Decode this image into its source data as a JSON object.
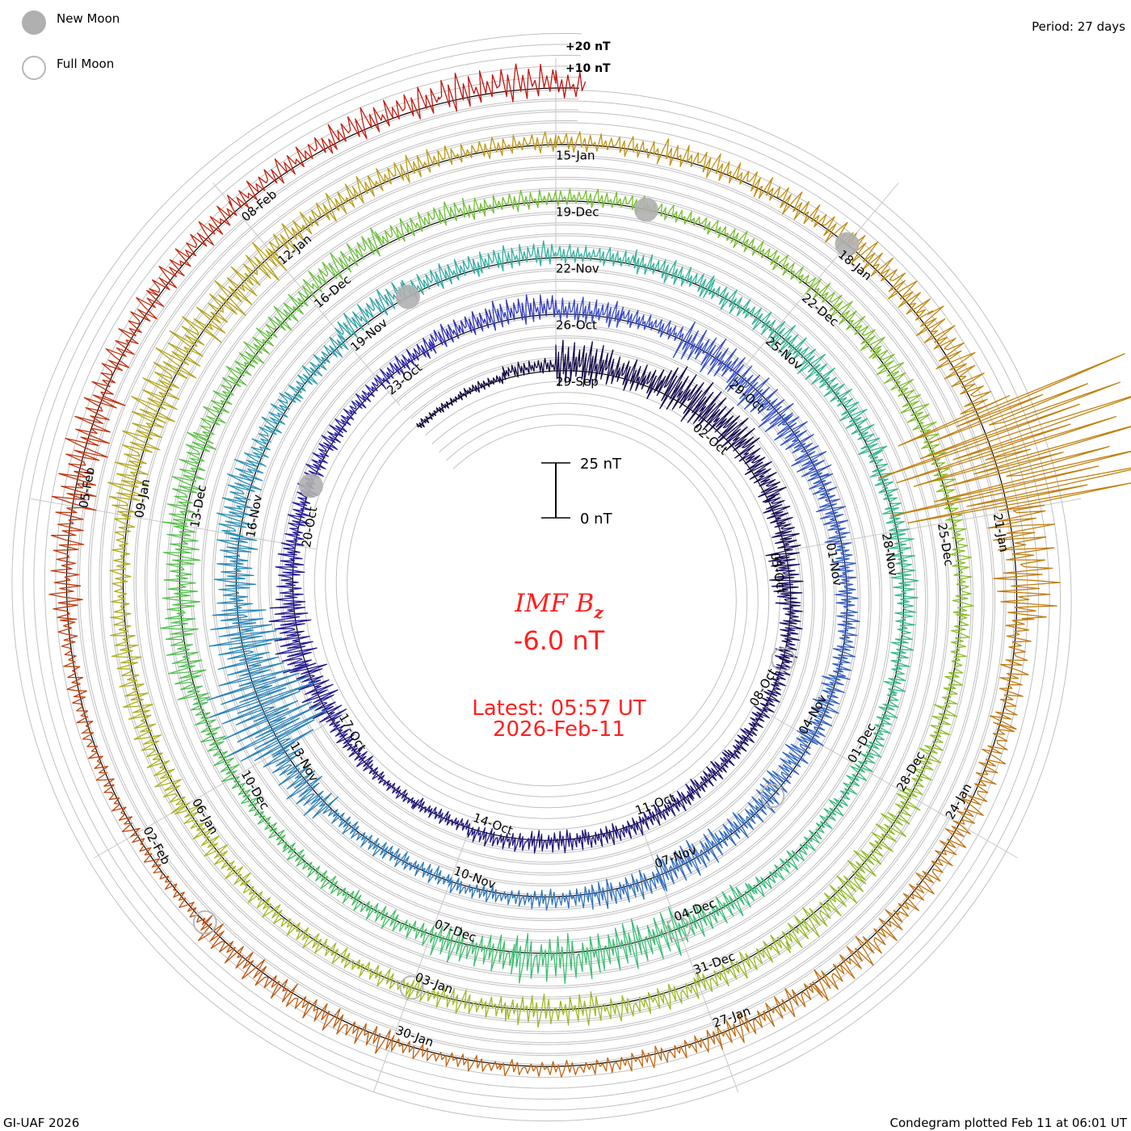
{
  "legend": {
    "new_moon": "New Moon",
    "full_moon": "Full Moon",
    "new_color": "#b0b0b0",
    "full_color": "#b8b8b8"
  },
  "period": "Period: 27 days",
  "footer_left": "GI-UAF 2026",
  "footer_right": "Condegram plotted Feb 11 at 06:01 UT",
  "center": {
    "title": "IMF B",
    "subscript": "z",
    "value": "-6.0 nT",
    "latest": "Latest: 05:57 UT",
    "date": "2026-Feb-11",
    "color": "#ff2020"
  },
  "scale": {
    "top": "25 nT",
    "bottom": "0 nT",
    "nT": 25
  },
  "grid_labels": {
    "plus20": "+20 nT",
    "plus10": "+10 nT"
  },
  "chart_data": {
    "type": "line",
    "title": "IMF Bz",
    "period_days": 27,
    "units": "nT",
    "origin_date": "29-Sep",
    "start_date": "2025-09-26",
    "end_day_offset": 135.25,
    "series_daily_min_max": [
      [
        -2,
        2
      ],
      [
        -2,
        3
      ],
      [
        -1,
        6
      ],
      [
        -8,
        14
      ],
      [
        -6,
        10
      ],
      [
        -8,
        16
      ],
      [
        -6,
        14
      ],
      [
        -4,
        10
      ],
      [
        -5,
        8
      ],
      [
        -10,
        6
      ],
      [
        -5,
        6
      ],
      [
        -4,
        5
      ],
      [
        -5,
        4
      ],
      [
        -6,
        4
      ],
      [
        -5,
        5
      ],
      [
        -4,
        6
      ],
      [
        -5,
        6
      ],
      [
        -3,
        6
      ],
      [
        -4,
        3
      ],
      [
        -3,
        3
      ],
      [
        -5,
        4
      ],
      [
        -10,
        8
      ],
      [
        -8,
        12
      ],
      [
        -6,
        8
      ],
      [
        -5,
        6
      ],
      [
        -4,
        6
      ],
      [
        -3,
        5
      ],
      [
        -4,
        6
      ],
      [
        -3,
        8
      ],
      [
        -4,
        10
      ],
      [
        -5,
        8
      ],
      [
        -3,
        6
      ],
      [
        -10,
        10
      ],
      [
        -12,
        8
      ],
      [
        -10,
        8
      ],
      [
        -8,
        6
      ],
      [
        -6,
        5
      ],
      [
        -5,
        6
      ],
      [
        -8,
        6
      ],
      [
        -10,
        4
      ],
      [
        -8,
        6
      ],
      [
        -10,
        8
      ],
      [
        -6,
        8
      ],
      [
        -4,
        6
      ],
      [
        -3,
        5
      ],
      [
        -5,
        4
      ],
      [
        -4,
        5
      ],
      [
        -8,
        12
      ],
      [
        -30,
        25
      ],
      [
        -20,
        15
      ],
      [
        -10,
        10
      ],
      [
        -6,
        12
      ],
      [
        -4,
        8
      ],
      [
        -5,
        6
      ],
      [
        -3,
        10
      ],
      [
        -4,
        8
      ],
      [
        -4,
        8
      ],
      [
        -3,
        6
      ],
      [
        -5,
        7
      ],
      [
        -6,
        6
      ],
      [
        -8,
        8
      ],
      [
        -6,
        8
      ],
      [
        -5,
        6
      ],
      [
        -6,
        7
      ],
      [
        -5,
        6
      ],
      [
        -4,
        6
      ],
      [
        -5,
        5
      ],
      [
        -4,
        6
      ],
      [
        -8,
        8
      ],
      [
        -12,
        12
      ],
      [
        -10,
        14
      ],
      [
        -8,
        10
      ],
      [
        -5,
        6
      ],
      [
        -4,
        5
      ],
      [
        -4,
        4
      ],
      [
        -6,
        6
      ],
      [
        -8,
        10
      ],
      [
        -10,
        8
      ],
      [
        -6,
        10
      ],
      [
        -5,
        8
      ],
      [
        -6,
        8
      ],
      [
        -4,
        10
      ],
      [
        -3,
        8
      ],
      [
        -4,
        6
      ],
      [
        -3,
        6
      ],
      [
        -3,
        5
      ],
      [
        -4,
        6
      ],
      [
        -5,
        8
      ],
      [
        -6,
        8
      ],
      [
        -5,
        6
      ],
      [
        -4,
        6
      ],
      [
        -4,
        5
      ],
      [
        -6,
        6
      ],
      [
        -8,
        8
      ],
      [
        -6,
        10
      ],
      [
        -5,
        8
      ],
      [
        -4,
        8
      ],
      [
        -8,
        8
      ],
      [
        -6,
        6
      ],
      [
        -5,
        5
      ],
      [
        -4,
        6
      ],
      [
        -6,
        6
      ],
      [
        -5,
        8
      ],
      [
        -6,
        8
      ],
      [
        -4,
        6
      ],
      [
        -8,
        12
      ],
      [
        -10,
        14
      ],
      [
        -12,
        10
      ],
      [
        -6,
        8
      ],
      [
        -5,
        8
      ],
      [
        -4,
        6
      ],
      [
        -4,
        6
      ],
      [
        -5,
        8
      ],
      [
        -6,
        8
      ],
      [
        -6,
        10
      ],
      [
        -8,
        12
      ],
      [
        -60,
        80
      ],
      [
        -12,
        20
      ],
      [
        -6,
        8
      ],
      [
        -5,
        8
      ],
      [
        -5,
        8
      ],
      [
        -6,
        10
      ],
      [
        -6,
        8
      ],
      [
        -4,
        6
      ],
      [
        -3,
        5
      ],
      [
        -3,
        5
      ],
      [
        -5,
        8
      ],
      [
        -6,
        8
      ],
      [
        -3,
        4
      ],
      [
        -3,
        5
      ],
      [
        -4,
        5
      ],
      [
        -8,
        8
      ],
      [
        -12,
        10
      ],
      [
        -6,
        8
      ],
      [
        -5,
        8
      ],
      [
        -4,
        8
      ],
      [
        -5,
        10
      ],
      [
        -6,
        12
      ],
      [
        -6,
        8
      ]
    ],
    "color_stops": [
      [
        0,
        "#12083a"
      ],
      [
        27,
        "#2a20a8"
      ],
      [
        30,
        "#3848c8"
      ],
      [
        50,
        "#2a8ab8"
      ],
      [
        56,
        "#30b0a0"
      ],
      [
        70,
        "#38c070"
      ],
      [
        83,
        "#70c030"
      ],
      [
        100,
        "#a8b820"
      ],
      [
        112,
        "#c09010"
      ],
      [
        125,
        "#c06010"
      ],
      [
        138,
        "#c01010"
      ]
    ],
    "date_labels": [
      "29-Sep",
      "02-Oct",
      "05-Oct",
      "08-Oct",
      "11-Oct",
      "14-Oct",
      "17-Oct",
      "20-Oct",
      "23-Oct",
      "26-Oct",
      "29-Oct",
      "01-Nov",
      "04-Nov",
      "07-Nov",
      "10-Nov",
      "13-Nov",
      "16-Nov",
      "19-Nov",
      "22-Nov",
      "25-Nov",
      "28-Nov",
      "01-Dec",
      "04-Dec",
      "07-Dec",
      "10-Dec",
      "13-Dec",
      "16-Dec",
      "19-Dec",
      "22-Dec",
      "25-Dec",
      "28-Dec",
      "31-Dec",
      "03-Jan",
      "06-Jan",
      "09-Jan",
      "12-Jan",
      "15-Jan",
      "18-Jan",
      "21-Jan",
      "24-Jan",
      "27-Jan",
      "30-Jan",
      "02-Feb",
      "05-Feb",
      "08-Feb"
    ],
    "label_interval_days": 3,
    "new_moons_day_offset": [
      22,
      52,
      82,
      111
    ],
    "full_moons_day_offset": [
      8,
      37,
      66,
      96,
      125
    ],
    "grid_step_nT": 5
  }
}
